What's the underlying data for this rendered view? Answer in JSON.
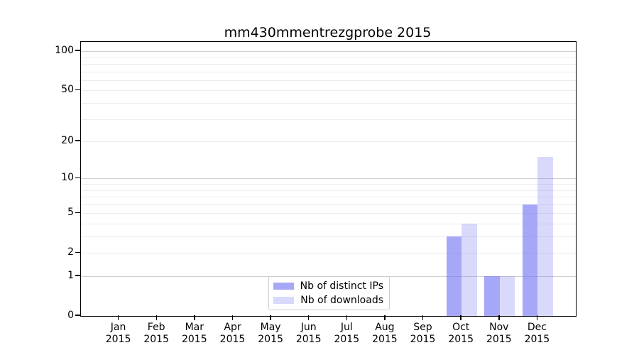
{
  "chart_data": {
    "type": "bar",
    "title": "mm430mmentrezgprobe 2015",
    "categories": [
      "Jan",
      "Feb",
      "Mar",
      "Apr",
      "May",
      "Jun",
      "Jul",
      "Aug",
      "Sep",
      "Oct",
      "Nov",
      "Dec"
    ],
    "category_year_label": "2015",
    "series": [
      {
        "name": "Nb of distinct IPs",
        "color": "rgba(113,113,242,0.62)",
        "values": [
          0,
          0,
          0,
          0,
          0,
          0,
          0,
          0,
          0,
          3,
          1,
          6
        ]
      },
      {
        "name": "Nb of downloads",
        "color": "rgba(113,113,242,0.27)",
        "values": [
          0,
          0,
          0,
          0,
          0,
          0,
          0,
          0,
          0,
          4,
          1,
          15
        ]
      }
    ],
    "xlabel": "",
    "ylabel": "",
    "y_axis": {
      "scale": "log10(1+x)",
      "tick_values": [
        0,
        1,
        2,
        5,
        10,
        20,
        50,
        100
      ],
      "tick_labels": [
        "0",
        "1",
        "2",
        "5",
        "10",
        "20",
        "50",
        "100"
      ],
      "major_gridlines": [
        1,
        10,
        100
      ],
      "minor_gridlines": [
        2,
        3,
        4,
        5,
        6,
        7,
        8,
        9,
        20,
        30,
        40,
        50,
        60,
        70,
        80,
        90
      ],
      "ylim": [
        0,
        112
      ]
    },
    "grid": "on",
    "legend": {
      "position": "lower center",
      "entries": [
        "Nb of distinct IPs",
        "Nb of downloads"
      ]
    },
    "colors": {
      "bar_distinct_ips": "rgba(113,113,242,0.62)",
      "bar_downloads": "rgba(113,113,242,0.27)",
      "minor_grid": "#ececec",
      "major_grid": "#d0d0d0",
      "frame": "#000000",
      "background": "#ffffff"
    }
  }
}
